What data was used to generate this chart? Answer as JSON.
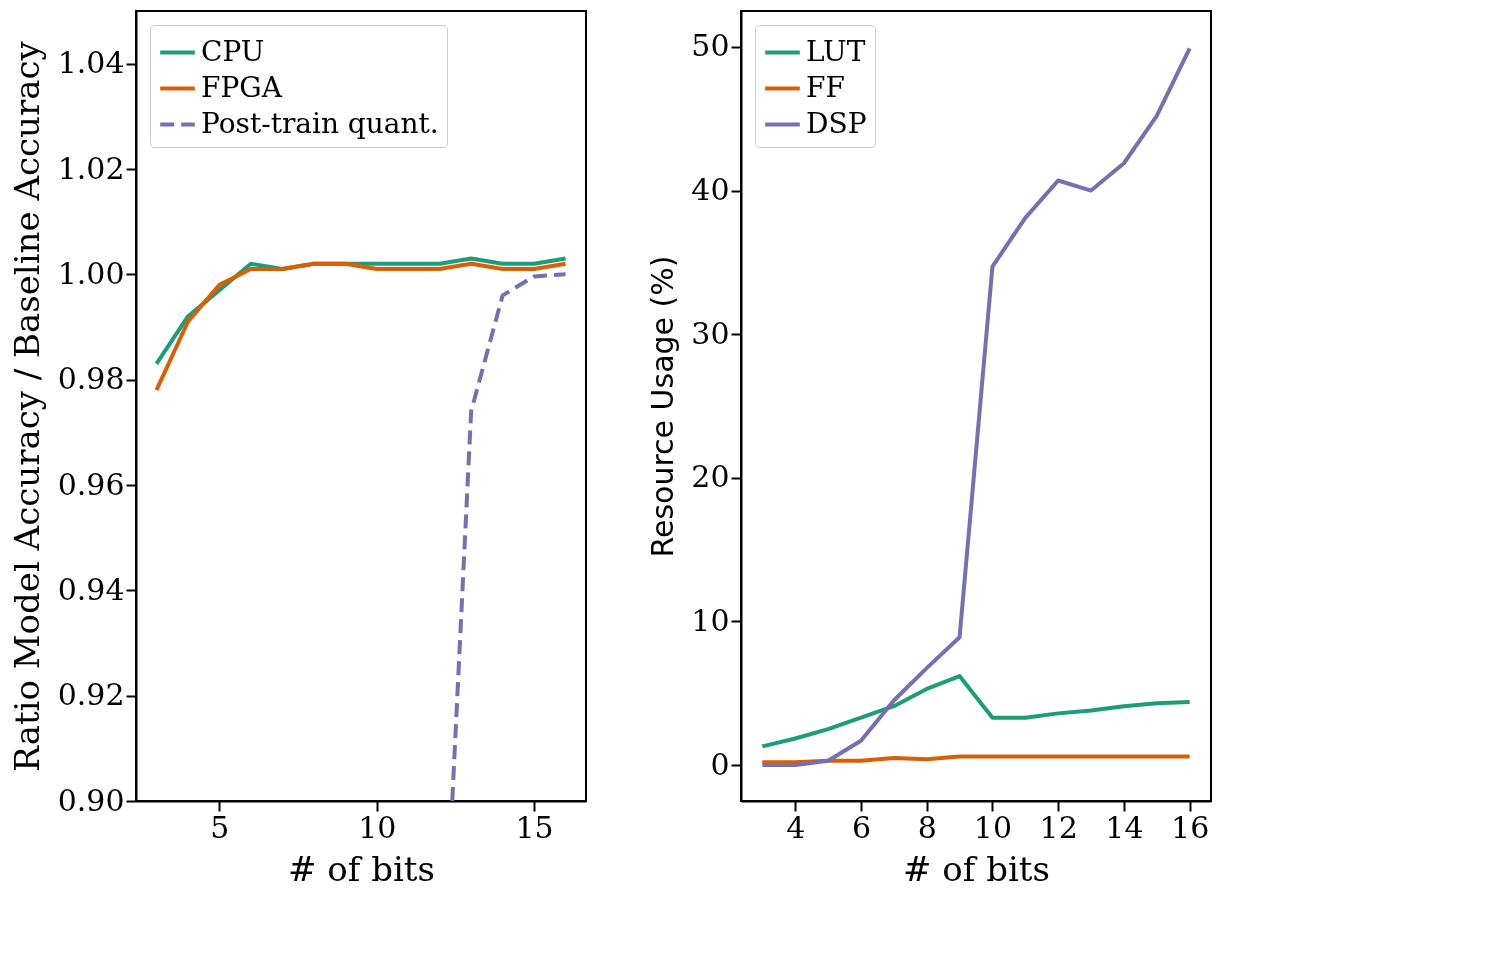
{
  "chart_data": [
    {
      "type": "line",
      "xlabel": "# of bits",
      "ylabel": "Ratio Model Accuracy / Baseline Accuracy",
      "x": [
        3,
        4,
        5,
        6,
        7,
        8,
        9,
        10,
        11,
        12,
        13,
        14,
        15,
        16
      ],
      "xlim": [
        2.35,
        16.65
      ],
      "xticks": [
        5,
        10,
        15
      ],
      "ylim": [
        0.9,
        1.05
      ],
      "yticks": [
        {
          "value": 0.9,
          "label": "0.90"
        },
        0.92,
        0.94,
        0.96,
        0.98,
        {
          "value": 1.0,
          "label": "1.00"
        },
        1.02,
        1.04
      ],
      "legend": "top left",
      "series": [
        {
          "name": "CPU",
          "color": "#1b9e77",
          "values": [
            0.983,
            0.992,
            0.997,
            1.002,
            1.001,
            1.002,
            1.002,
            1.002,
            1.002,
            1.002,
            1.003,
            1.002,
            1.002,
            1.003
          ]
        },
        {
          "name": "FPGA",
          "color": "#d95f02",
          "values": [
            0.978,
            0.991,
            0.998,
            1.001,
            1.001,
            1.002,
            1.002,
            1.001,
            1.001,
            1.001,
            1.002,
            1.001,
            1.001,
            1.002
          ]
        },
        {
          "name": "Post-train quant.",
          "color": "#7570b3",
          "line_style": "dashed",
          "x": [
            12.4,
            13,
            14,
            15,
            16
          ],
          "values": [
            0.9,
            0.974,
            0.996,
            0.9996,
            1.0
          ]
        }
      ]
    },
    {
      "type": "line",
      "xlabel": "# of bits",
      "ylabel": "Resource Usage (%)",
      "x": [
        3,
        4,
        5,
        6,
        7,
        8,
        9,
        10,
        11,
        12,
        13,
        14,
        15,
        16
      ],
      "xlim": [
        2.35,
        16.65
      ],
      "xticks": [
        4,
        6,
        8,
        10,
        12,
        14,
        16
      ],
      "ylim": [
        -2.5,
        52.5
      ],
      "yticks": [
        0,
        10,
        20,
        30,
        40,
        50
      ],
      "legend": "top left",
      "series": [
        {
          "name": "LUT",
          "color": "#1b9e77",
          "values": [
            1.3,
            1.85,
            2.5,
            3.3,
            4.1,
            5.3,
            6.2,
            3.3,
            3.3,
            3.6,
            3.8,
            4.1,
            4.3,
            4.4
          ]
        },
        {
          "name": "FF",
          "color": "#d95f02",
          "values": [
            0.2,
            0.2,
            0.3,
            0.3,
            0.5,
            0.4,
            0.6,
            0.6,
            0.6,
            0.6,
            0.6,
            0.6,
            0.6,
            0.6
          ]
        },
        {
          "name": "DSP",
          "color": "#7570b3",
          "values": [
            0,
            0,
            0.3,
            1.7,
            4.5,
            6.75,
            8.9,
            34.7,
            38.1,
            40.7,
            40.0,
            41.9,
            45.2,
            49.9
          ]
        }
      ]
    }
  ]
}
